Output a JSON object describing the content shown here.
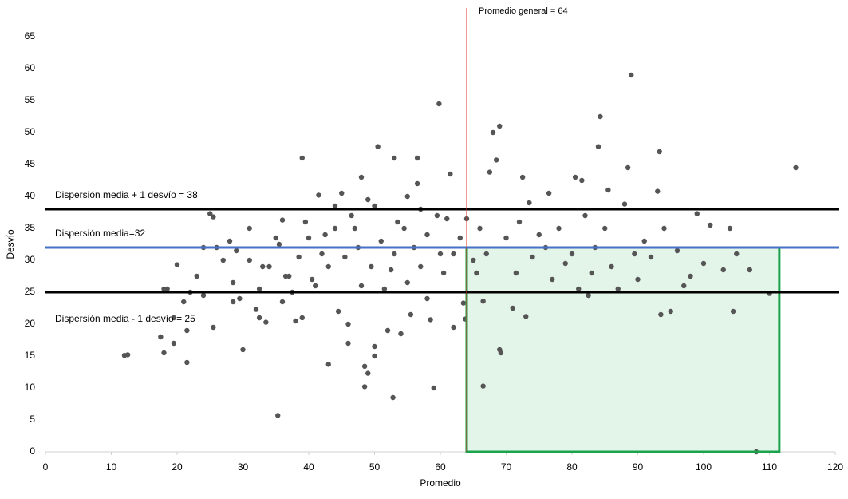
{
  "chart_data": {
    "type": "scatter",
    "x_label": "Promedio",
    "y_label": "Desvío",
    "color": "#555555",
    "xlim": [
      0,
      120
    ],
    "ylim": [
      0,
      65
    ],
    "xticks": [
      0,
      10,
      20,
      30,
      40,
      50,
      60,
      70,
      80,
      90,
      100,
      110,
      120
    ],
    "yticks": [
      0,
      5,
      10,
      15,
      20,
      25,
      30,
      35,
      40,
      45,
      50,
      55,
      60,
      65
    ],
    "vlines": [
      {
        "value": 64,
        "label": "Promedio general = 64",
        "color": "#e03030"
      }
    ],
    "hlines": [
      {
        "value": 38,
        "label": "Dispersión media + 1 desvío = 38",
        "color": "#000000"
      },
      {
        "value": 32,
        "label": "Dispersión media=32",
        "color": "#4472c4"
      },
      {
        "value": 25,
        "label": "Dispersión media - 1 desvío = 25",
        "color": "#000000"
      }
    ],
    "region": {
      "x": [
        64,
        111.5
      ],
      "y": [
        0,
        32
      ],
      "color": "#1aa34a"
    },
    "x": [
      12,
      12.5,
      17.5,
      18,
      18,
      18.5,
      19.5,
      19.5,
      20,
      21,
      21.5,
      21.5,
      22,
      23,
      24,
      24,
      25,
      25.5,
      25.5,
      26,
      27,
      28,
      28.5,
      28.5,
      29,
      29.5,
      30,
      31,
      31,
      32,
      32.5,
      32.5,
      33,
      33.5,
      34,
      35,
      35.3,
      35.5,
      36,
      36,
      36.5,
      37,
      37.5,
      38,
      38.5,
      39,
      39,
      39.5,
      40,
      40.5,
      41,
      41.5,
      42,
      42.5,
      43,
      43,
      44,
      44,
      44.5,
      45,
      45.5,
      46,
      46,
      46.5,
      47,
      47.5,
      48,
      48,
      48.5,
      48.5,
      49,
      49,
      49.5,
      50,
      50,
      50,
      50.5,
      51,
      51.5,
      52,
      52.5,
      52.8,
      53,
      53,
      53.5,
      54,
      54.5,
      55,
      55,
      55.5,
      56,
      56.5,
      56.5,
      57,
      57,
      58,
      58,
      58.5,
      59,
      59.5,
      59.8,
      60,
      60.5,
      61,
      61.5,
      62,
      62,
      63,
      63.5,
      63.8,
      64,
      65,
      65.5,
      66,
      66.5,
      66.5,
      67,
      67.5,
      68,
      68.5,
      69,
      69,
      69.2,
      70,
      71,
      71.5,
      72,
      72.5,
      73,
      73.5,
      74,
      75,
      76,
      76.5,
      77,
      78,
      79,
      80,
      80.5,
      81,
      81.5,
      82,
      82.5,
      83,
      83.5,
      84,
      84.3,
      85,
      85.5,
      86,
      87,
      88,
      88.5,
      89,
      89.5,
      90,
      91,
      92,
      93,
      93.3,
      93.5,
      94,
      95,
      96,
      97,
      98,
      99,
      100,
      101,
      103,
      104,
      104.5,
      105,
      107,
      108,
      110,
      114
    ],
    "y": [
      15.1,
      15.2,
      18,
      15.5,
      25.5,
      25.5,
      21,
      17,
      29.3,
      23.5,
      19,
      14,
      25,
      27.5,
      32,
      24.5,
      37.3,
      36.8,
      19.5,
      32,
      30,
      33,
      26.5,
      23.5,
      31.5,
      24,
      16,
      35,
      30,
      22.3,
      21,
      25.5,
      29,
      20.3,
      29,
      33.5,
      5.7,
      32.5,
      23.5,
      36.3,
      27.5,
      27.5,
      25,
      20.5,
      30.5,
      46,
      21,
      36,
      33.5,
      27,
      26,
      40.2,
      31,
      34,
      13.7,
      29,
      35,
      38.5,
      22,
      40.5,
      30.5,
      20,
      17,
      37,
      35,
      32,
      43,
      26,
      10.2,
      13.4,
      39.5,
      12.3,
      29,
      38.5,
      16.5,
      15,
      47.8,
      33,
      25.5,
      19,
      28.5,
      8.5,
      46,
      31,
      36,
      18.5,
      35,
      40,
      26.5,
      21.5,
      32,
      42,
      46,
      38,
      29,
      24,
      34,
      20.7,
      10,
      37,
      54.5,
      31,
      28,
      36.5,
      43.5,
      19.5,
      31,
      33.5,
      23.3,
      20.8,
      36.5,
      30,
      28,
      35,
      10.3,
      23.6,
      31,
      43.8,
      50,
      45.7,
      51,
      16,
      15.5,
      33.5,
      22.5,
      28,
      36,
      43,
      21.2,
      39,
      30.5,
      34,
      32,
      40.5,
      27,
      35,
      29.5,
      31,
      43,
      25.5,
      42.5,
      37,
      24.5,
      28,
      32,
      47.8,
      52.5,
      35,
      41,
      29,
      25.5,
      38.8,
      44.5,
      59,
      31,
      27,
      33,
      30.5,
      40.8,
      47,
      21.5,
      35,
      22,
      31.5,
      26,
      27.5,
      37.3,
      29.5,
      35.5,
      28.5,
      35,
      22,
      31,
      28.5,
      0,
      24.8,
      44.5
    ]
  }
}
